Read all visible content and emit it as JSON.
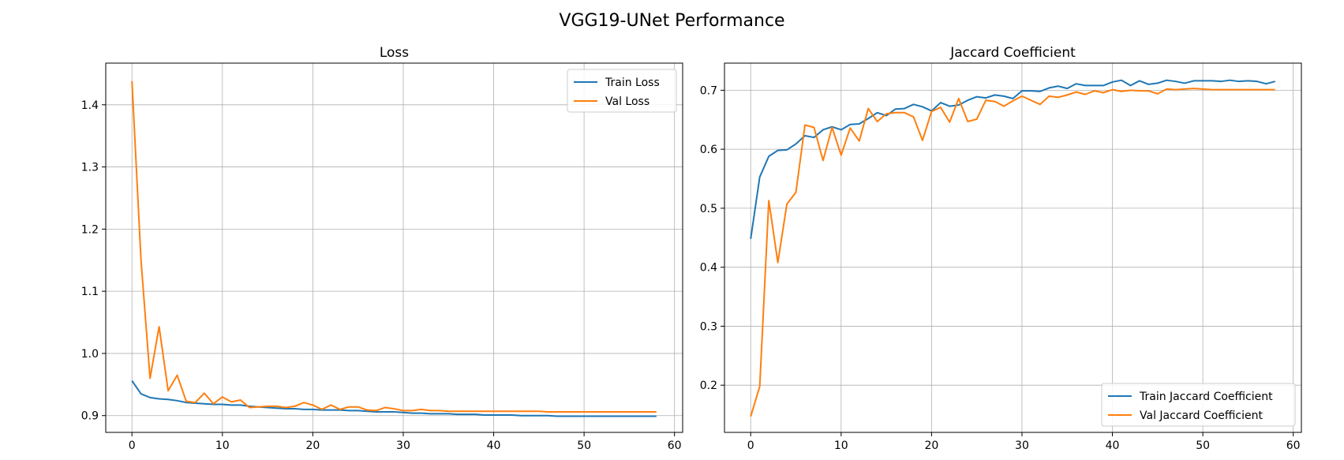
{
  "figure": {
    "suptitle": "VGG19-UNet Performance"
  },
  "chart_data": [
    {
      "type": "line",
      "title": "Loss",
      "xlabel": "",
      "ylabel": "",
      "xlim": [
        -2.9,
        60.9
      ],
      "ylim": [
        0.873,
        1.467
      ],
      "xticks": [
        0,
        10,
        20,
        30,
        40,
        50,
        60
      ],
      "yticks": [
        0.9,
        1.0,
        1.1,
        1.2,
        1.3,
        1.4
      ],
      "ytick_labels": [
        "0.9",
        "1.0",
        "1.1",
        "1.2",
        "1.3",
        "1.4"
      ],
      "grid": true,
      "legend": "top-right",
      "series": [
        {
          "name": "Train Loss",
          "color": "#1f77b4",
          "values": [
            0.956,
            0.935,
            0.929,
            0.927,
            0.926,
            0.924,
            0.921,
            0.92,
            0.919,
            0.918,
            0.918,
            0.917,
            0.917,
            0.915,
            0.914,
            0.913,
            0.912,
            0.911,
            0.911,
            0.91,
            0.91,
            0.909,
            0.909,
            0.909,
            0.908,
            0.908,
            0.907,
            0.906,
            0.906,
            0.906,
            0.905,
            0.904,
            0.904,
            0.903,
            0.903,
            0.903,
            0.902,
            0.902,
            0.902,
            0.901,
            0.901,
            0.901,
            0.901,
            0.9,
            0.9,
            0.9,
            0.9,
            0.899,
            0.899,
            0.899,
            0.899,
            0.899,
            0.899,
            0.899,
            0.899,
            0.899,
            0.899,
            0.899,
            0.899
          ]
        },
        {
          "name": "Val Loss",
          "color": "#ff7f0e",
          "values": [
            1.438,
            1.15,
            0.96,
            1.043,
            0.94,
            0.965,
            0.923,
            0.921,
            0.936,
            0.919,
            0.93,
            0.922,
            0.925,
            0.913,
            0.914,
            0.915,
            0.915,
            0.913,
            0.915,
            0.921,
            0.917,
            0.91,
            0.917,
            0.91,
            0.914,
            0.914,
            0.909,
            0.908,
            0.913,
            0.911,
            0.908,
            0.908,
            0.91,
            0.908,
            0.908,
            0.907,
            0.907,
            0.907,
            0.907,
            0.907,
            0.907,
            0.907,
            0.907,
            0.907,
            0.907,
            0.907,
            0.906,
            0.906,
            0.906,
            0.906,
            0.906,
            0.906,
            0.906,
            0.906,
            0.906,
            0.906,
            0.906,
            0.906,
            0.906
          ]
        }
      ]
    },
    {
      "type": "line",
      "title": "Jaccard Coefficient",
      "xlabel": "",
      "ylabel": "",
      "xlim": [
        -2.9,
        60.9
      ],
      "ylim": [
        0.12,
        0.746
      ],
      "xticks": [
        0,
        10,
        20,
        30,
        40,
        50,
        60
      ],
      "yticks": [
        0.2,
        0.3,
        0.4,
        0.5,
        0.6,
        0.7
      ],
      "ytick_labels": [
        "0.2",
        "0.3",
        "0.4",
        "0.5",
        "0.6",
        "0.7"
      ],
      "grid": true,
      "legend": "bottom-right",
      "series": [
        {
          "name": "Train Jaccard Coefficient",
          "color": "#1f77b4",
          "values": [
            0.448,
            0.553,
            0.588,
            0.598,
            0.599,
            0.609,
            0.623,
            0.62,
            0.633,
            0.638,
            0.633,
            0.642,
            0.643,
            0.652,
            0.662,
            0.657,
            0.668,
            0.669,
            0.676,
            0.672,
            0.665,
            0.679,
            0.673,
            0.675,
            0.683,
            0.689,
            0.687,
            0.692,
            0.69,
            0.686,
            0.699,
            0.699,
            0.698,
            0.704,
            0.707,
            0.703,
            0.711,
            0.708,
            0.708,
            0.708,
            0.714,
            0.717,
            0.708,
            0.716,
            0.71,
            0.712,
            0.717,
            0.715,
            0.712,
            0.716,
            0.716,
            0.716,
            0.715,
            0.717,
            0.715,
            0.716,
            0.715,
            0.711,
            0.715
          ]
        },
        {
          "name": "Val Jaccard Coefficient",
          "color": "#ff7f0e",
          "values": [
            0.147,
            0.198,
            0.513,
            0.408,
            0.507,
            0.527,
            0.641,
            0.637,
            0.581,
            0.637,
            0.59,
            0.636,
            0.614,
            0.669,
            0.647,
            0.66,
            0.662,
            0.662,
            0.655,
            0.615,
            0.664,
            0.671,
            0.646,
            0.686,
            0.647,
            0.651,
            0.683,
            0.681,
            0.673,
            0.682,
            0.69,
            0.683,
            0.676,
            0.69,
            0.688,
            0.692,
            0.697,
            0.693,
            0.699,
            0.696,
            0.701,
            0.698,
            0.7,
            0.699,
            0.699,
            0.694,
            0.702,
            0.701,
            0.702,
            0.703,
            0.702,
            0.701,
            0.701,
            0.701,
            0.701,
            0.701,
            0.701,
            0.701,
            0.701
          ]
        }
      ]
    }
  ]
}
